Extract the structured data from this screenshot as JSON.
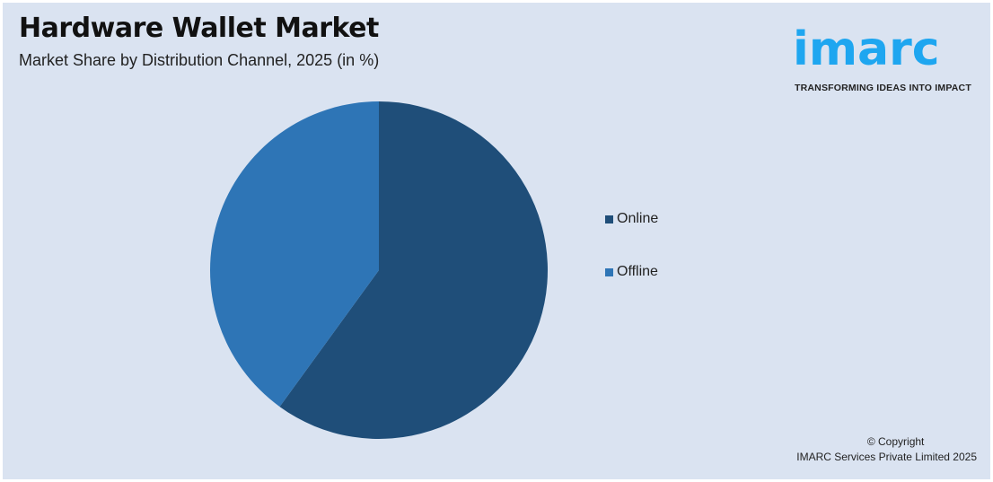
{
  "header": {
    "title": "Hardware Wallet Market",
    "subtitle": "Market Share by Distribution Channel, 2025 (in %)"
  },
  "logo": {
    "text": "imarc",
    "tagline": "TRANSFORMING IDEAS INTO IMPACT",
    "color": "#1ea6f0"
  },
  "chart_data": {
    "type": "pie",
    "title": "Hardware Wallet Market",
    "subtitle": "Market Share by Distribution Channel, 2025 (in %)",
    "categories": [
      "Online",
      "Offline"
    ],
    "values": [
      60,
      40
    ],
    "colors": [
      "#1f4e79",
      "#2e75b6"
    ],
    "start_angle": "12 o'clock, clockwise",
    "legend": "right"
  },
  "footer": {
    "copyright": "© Copyright",
    "company": "IMARC Services Private Limited 2025"
  }
}
